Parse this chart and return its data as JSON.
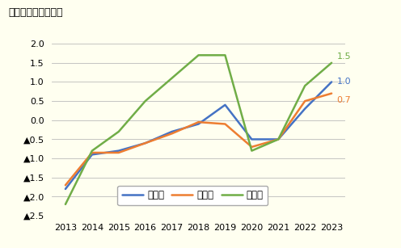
{
  "title": "（前年同月比、％）",
  "years": [
    2013,
    2014,
    2015,
    2016,
    2017,
    2018,
    2019,
    2020,
    2021,
    2022,
    2023
  ],
  "全用途": [
    -1.8,
    -0.9,
    -0.8,
    -0.6,
    -0.3,
    -0.1,
    0.4,
    -0.5,
    -0.5,
    0.3,
    1.0
  ],
  "住宅地": [
    -1.7,
    -0.85,
    -0.85,
    -0.6,
    -0.35,
    -0.05,
    -0.1,
    -0.7,
    -0.5,
    0.5,
    0.7
  ],
  "商業地": [
    -2.2,
    -0.8,
    -0.3,
    0.5,
    1.1,
    1.7,
    1.7,
    -0.8,
    -0.5,
    0.9,
    1.5
  ],
  "line_colors": {
    "全用途": "#4472c4",
    "住宅地": "#ed7d31",
    "商業地": "#70ad47"
  },
  "end_labels": {
    "全用途": "1.0",
    "住宅地": "0.7",
    "商業地": "1.5"
  },
  "ylim": [
    -2.5,
    2.3
  ],
  "yticks": [
    2.0,
    1.5,
    1.0,
    0.5,
    0.0,
    -0.5,
    -1.0,
    -1.5,
    -2.0,
    -2.5
  ],
  "background_color": "#fffff0",
  "grid_color": "#bbbbbb",
  "legend_labels": [
    "全用途",
    "住宅地",
    "商業地"
  ]
}
